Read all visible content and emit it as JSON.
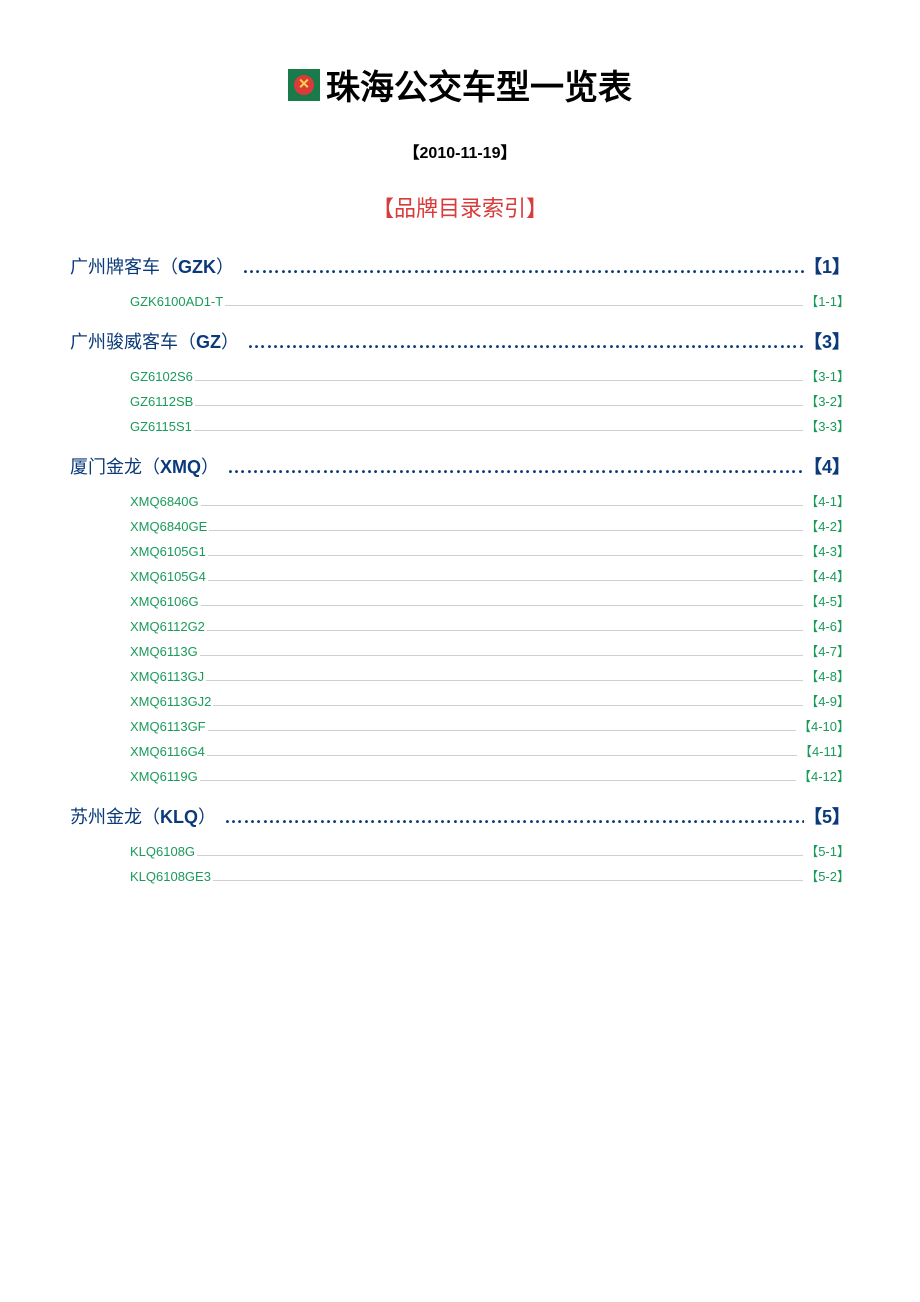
{
  "title": "珠海公交车型一览表",
  "date": "【2010-11-19】",
  "index_header": "【品牌目录索引】",
  "colors": {
    "brand_color": "#0a3a7a",
    "model_color": "#1a9b5a",
    "header_color": "#d93b3b"
  },
  "brands": [
    {
      "name_cn": "广州牌客车",
      "code": "GZK",
      "num": "【1】",
      "models": [
        {
          "name": "GZK6100AD1-T",
          "num": "【1-1】"
        }
      ]
    },
    {
      "name_cn": "广州骏威客车",
      "code": "GZ",
      "num": "【3】",
      "models": [
        {
          "name": "GZ6102S6",
          "num": "【3-1】"
        },
        {
          "name": "GZ6112SB",
          "num": "【3-2】"
        },
        {
          "name": "GZ6115S1",
          "num": "【3-3】"
        }
      ]
    },
    {
      "name_cn": "厦门金龙",
      "code": "XMQ",
      "num": "【4】",
      "models": [
        {
          "name": "XMQ6840G",
          "num": "【4-1】"
        },
        {
          "name": "XMQ6840GE",
          "num": "【4-2】"
        },
        {
          "name": "XMQ6105G1",
          "num": "【4-3】"
        },
        {
          "name": "XMQ6105G4",
          "num": "【4-4】"
        },
        {
          "name": "XMQ6106G",
          "num": "【4-5】"
        },
        {
          "name": "XMQ6112G2",
          "num": "【4-6】"
        },
        {
          "name": "XMQ6113G",
          "num": "【4-7】"
        },
        {
          "name": "XMQ6113GJ",
          "num": "【4-8】"
        },
        {
          "name": "XMQ6113GJ2",
          "num": "【4-9】"
        },
        {
          "name": "XMQ6113GF",
          "num": "【4-10】"
        },
        {
          "name": "XMQ6116G4",
          "num": "【4-11】"
        },
        {
          "name": "XMQ6119G",
          "num": "【4-12】"
        }
      ]
    },
    {
      "name_cn": "苏州金龙",
      "code": "KLQ",
      "num": "【5】",
      "models": [
        {
          "name": "KLQ6108G",
          "num": "【5-1】"
        },
        {
          "name": "KLQ6108GE3",
          "num": "【5-2】"
        }
      ]
    }
  ]
}
